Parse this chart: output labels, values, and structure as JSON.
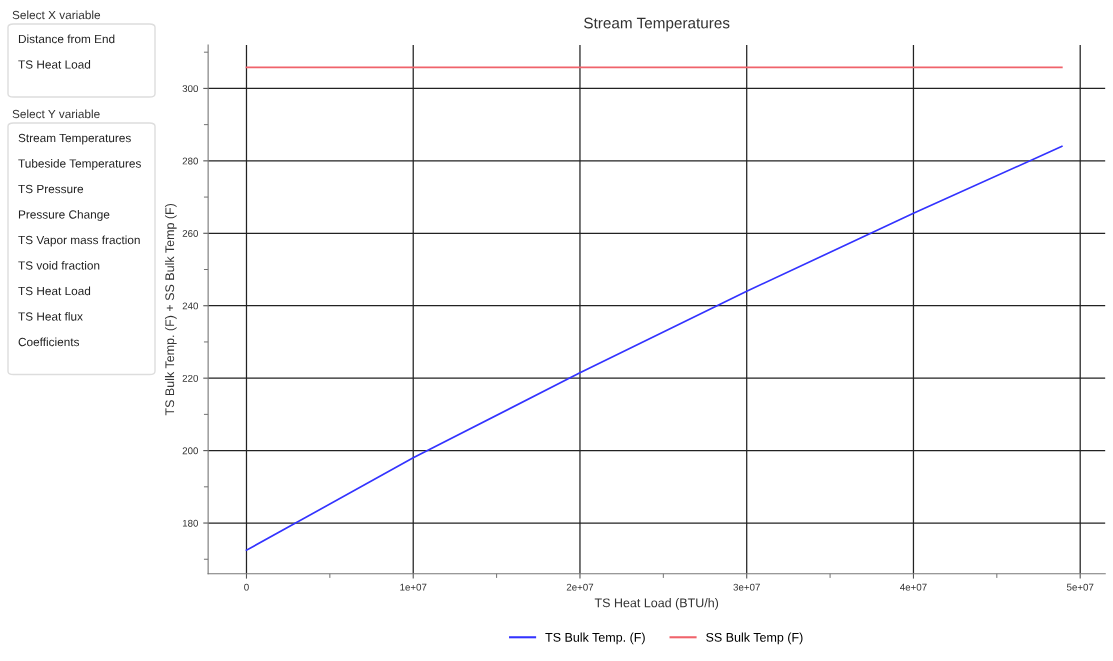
{
  "chart_data": [
    {
      "type": "other",
      "title": "Select X variable",
      "annotations": [
        "Distance from End",
        "TS Heat Load"
      ]
    },
    {
      "type": "other",
      "title": "Select Y variable",
      "annotations": [
        "Stream Temperatures",
        "Tubeside Temperatures",
        "TS Pressure",
        "Pressure Change",
        "TS Vapor mass fraction",
        "TS void fraction",
        "TS Heat Load",
        "TS Heat flux",
        "Coefficients"
      ]
    },
    {
      "type": "line",
      "title": "Stream Temperatures",
      "xlabel": "TS Heat Load (BTU/h)",
      "ylabel": "TS Bulk Temp. (F) + SS Bulk Temp (F)",
      "series": [
        {
          "name": "TS Bulk Temp. (F)",
          "color": "#3333ff",
          "x": [
            0,
            10000000,
            20000000,
            30000000,
            40000000,
            48900000
          ],
          "values": [
            172.5,
            198,
            221.5,
            244,
            265.5,
            284
          ]
        },
        {
          "name": "SS Bulk Temp (F)",
          "color": "#f0636b",
          "x": [
            0,
            10000000,
            20000000,
            30000000,
            40000000,
            48900000
          ],
          "values": [
            305.8,
            305.8,
            305.8,
            305.8,
            305.8,
            305.8
          ]
        }
      ],
      "xlim": [
        -2300000,
        51500000
      ],
      "ylim": [
        166,
        312
      ],
      "xticks": [
        {
          "value": 0,
          "label": "0"
        },
        {
          "value": 5000000,
          "label": null
        },
        {
          "value": 10000000,
          "label": "1e+07"
        },
        {
          "value": 15000000,
          "label": null
        },
        {
          "value": 20000000,
          "label": "2e+07"
        },
        {
          "value": 25000000,
          "label": null
        },
        {
          "value": 30000000,
          "label": "3e+07"
        },
        {
          "value": 35000000,
          "label": null
        },
        {
          "value": 40000000,
          "label": "4e+07"
        },
        {
          "value": 45000000,
          "label": null
        },
        {
          "value": 50000000,
          "label": "5e+07"
        }
      ],
      "yticks": [
        {
          "value": 170,
          "label": null
        },
        180,
        {
          "value": 190,
          "label": null
        },
        200,
        {
          "value": 210,
          "label": null
        },
        220,
        {
          "value": 230,
          "label": null
        },
        240,
        {
          "value": 250,
          "label": null
        },
        260,
        {
          "value": 270,
          "label": null
        },
        280,
        {
          "value": 290,
          "label": null
        },
        300,
        {
          "value": 310,
          "label": null
        }
      ],
      "grid": true,
      "legend": "bottom",
      "marker": "none",
      "line_style": "solid"
    }
  ]
}
